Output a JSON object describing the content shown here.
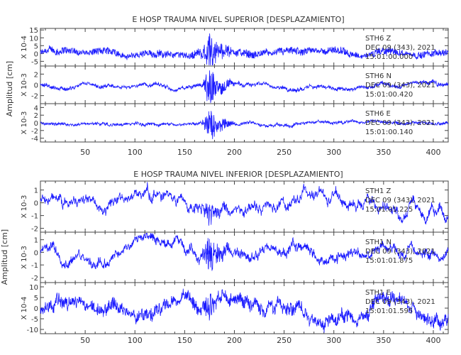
{
  "colors": {
    "trace": "#1a1aff",
    "axis": "#444444",
    "text": "#333333"
  },
  "chart_data": [
    {
      "type": "line",
      "title": "E HOSP TRAUMA NIVEL SUPERIOR [DESPLAZAMIENTO]",
      "ylabel": "Amplitud [cm]",
      "x_ticks": [
        50,
        100,
        150,
        200,
        250,
        300,
        350,
        400
      ],
      "xlim": [
        5,
        415
      ],
      "panels": [
        {
          "scale_label": "X 10-4",
          "y_ticks": [
            -5,
            0,
            5,
            10,
            15
          ],
          "ylim": [
            -8,
            16
          ],
          "station": "STH6",
          "component": "Z",
          "date": "DEC 09 (343), 2021",
          "time": "15:01:00.000",
          "trace": {
            "noise": 3.0,
            "event": 10.0,
            "wander": 1.0
          }
        },
        {
          "scale_label": "X 10-3",
          "y_ticks": [
            -2,
            0,
            2
          ],
          "ylim": [
            -3.5,
            3.5
          ],
          "station": "STH6",
          "component": "N",
          "date": "DEC 09 (343), 2021",
          "time": "15:01:00.420",
          "trace": {
            "noise": 0.4,
            "event": 3.0,
            "wander": 0.3
          }
        },
        {
          "scale_label": "X 10-3",
          "y_ticks": [
            -4,
            -2,
            0,
            2,
            4
          ],
          "ylim": [
            -5,
            5
          ],
          "station": "STH6",
          "component": "E",
          "date": "DEC 09 (343), 2021",
          "time": "15:01:00.140",
          "trace": {
            "noise": 0.45,
            "event": 3.5,
            "wander": 0.3
          }
        }
      ]
    },
    {
      "type": "line",
      "title": "E HOSP TRAUMA NIVEL INFERIOR [DESPLAZAMIENTO]",
      "ylabel": "Amplitud [cm]",
      "x_ticks": [
        50,
        100,
        150,
        200,
        250,
        300,
        350,
        400
      ],
      "xlim": [
        5,
        415
      ],
      "panels": [
        {
          "scale_label": "X 10-3",
          "y_ticks": [
            -2,
            -1,
            0,
            1
          ],
          "ylim": [
            -2.3,
            1.7
          ],
          "station": "STH1",
          "component": "Z",
          "date": "DEC 09 (343), 2021",
          "time": "15:01:01.225",
          "trace": {
            "noise": 0.3,
            "event": 0.8,
            "wander": 0.55
          }
        },
        {
          "scale_label": "X 10-3",
          "y_ticks": [
            -2,
            -1,
            0,
            1
          ],
          "ylim": [
            -2.4,
            1.6
          ],
          "station": "STH1",
          "component": "N",
          "date": "DEC 09 (343), 2021",
          "time": "15:01:01.875",
          "trace": {
            "noise": 0.35,
            "event": 1.2,
            "wander": 0.45
          }
        },
        {
          "scale_label": "X 10-4",
          "y_ticks": [
            -10,
            -5,
            0,
            5,
            10
          ],
          "ylim": [
            -12,
            12
          ],
          "station": "STH1",
          "component": "E",
          "date": "DEC 09 (343), 2021",
          "time": "15:01:01.595",
          "trace": {
            "noise": 3.5,
            "event": 4.0,
            "wander": 2.5
          }
        }
      ]
    }
  ]
}
